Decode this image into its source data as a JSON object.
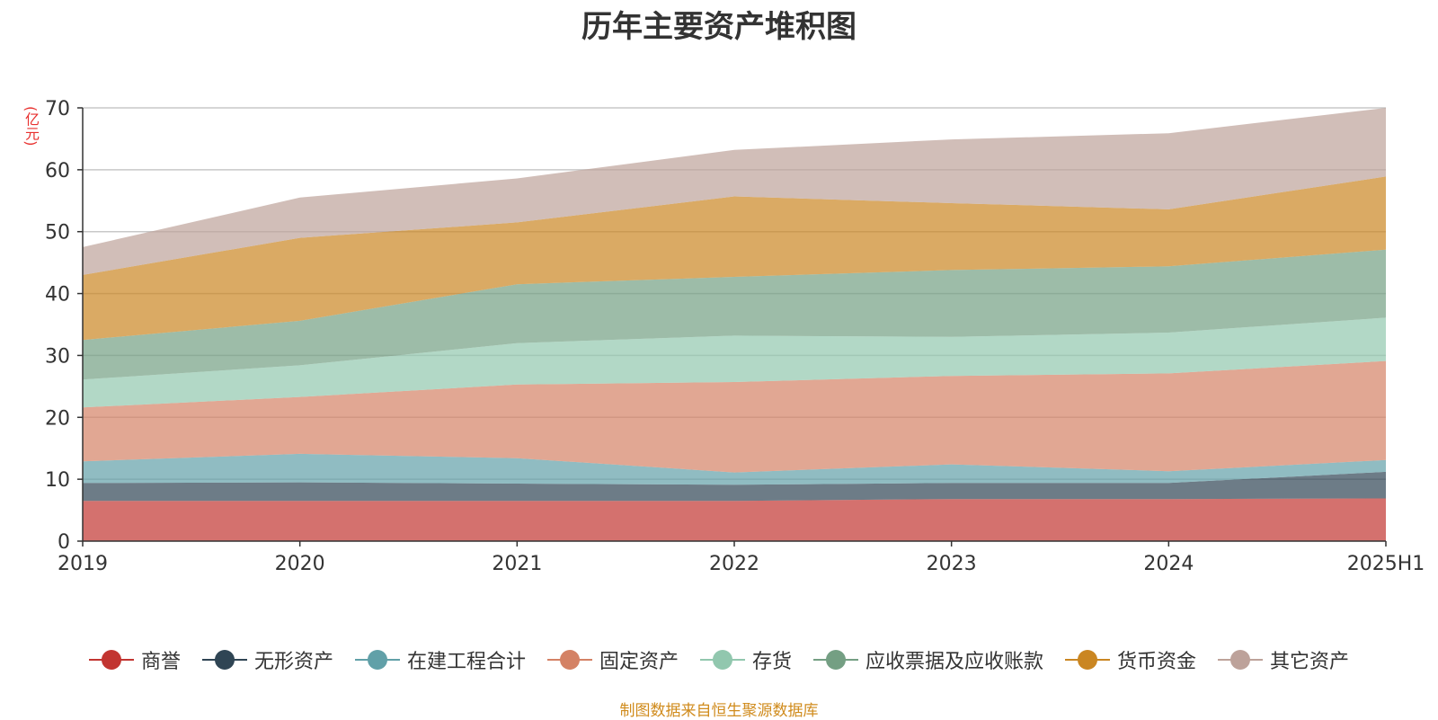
{
  "chart_data": {
    "type": "area",
    "stacked": true,
    "title": "历年主要资产堆积图",
    "ylabel": "(亿元)",
    "ylim": [
      0,
      70
    ],
    "yticks": [
      0,
      10,
      20,
      30,
      40,
      50,
      60,
      70
    ],
    "grid": true,
    "legend_position": "bottom",
    "x": [
      "2019",
      "2020",
      "2021",
      "2022",
      "2023",
      "2024",
      "2025H1"
    ],
    "series": [
      {
        "name": "商誉",
        "color": "#c23531",
        "values": [
          6.5,
          6.5,
          6.5,
          6.5,
          6.8,
          6.8,
          6.9
        ]
      },
      {
        "name": "无形资产",
        "color": "#2f4554",
        "values": [
          2.9,
          3.0,
          2.8,
          2.6,
          2.6,
          2.6,
          4.3
        ]
      },
      {
        "name": "在建工程合计",
        "color": "#61a0a8",
        "values": [
          3.5,
          4.6,
          4.1,
          2.0,
          3.0,
          1.9,
          1.9
        ]
      },
      {
        "name": "固定资产",
        "color": "#d48265",
        "values": [
          8.7,
          9.2,
          11.9,
          14.6,
          14.3,
          15.8,
          16.0
        ]
      },
      {
        "name": "存货",
        "color": "#91c7ae",
        "values": [
          4.5,
          5.1,
          6.7,
          7.5,
          6.3,
          6.6,
          7.0
        ]
      },
      {
        "name": "应收票据及应收账款",
        "color": "#749f83",
        "values": [
          6.4,
          7.2,
          9.5,
          9.5,
          10.8,
          10.7,
          11.0
        ]
      },
      {
        "name": "货币资金",
        "color": "#ca8622",
        "values": [
          10.5,
          13.4,
          10.0,
          13.0,
          10.8,
          9.2,
          11.8
        ]
      },
      {
        "name": "其它资产",
        "color": "#bda29a",
        "values": [
          4.5,
          6.5,
          7.1,
          7.5,
          10.3,
          12.3,
          11.1
        ]
      }
    ]
  },
  "source": "制图数据来自恒生聚源数据库"
}
